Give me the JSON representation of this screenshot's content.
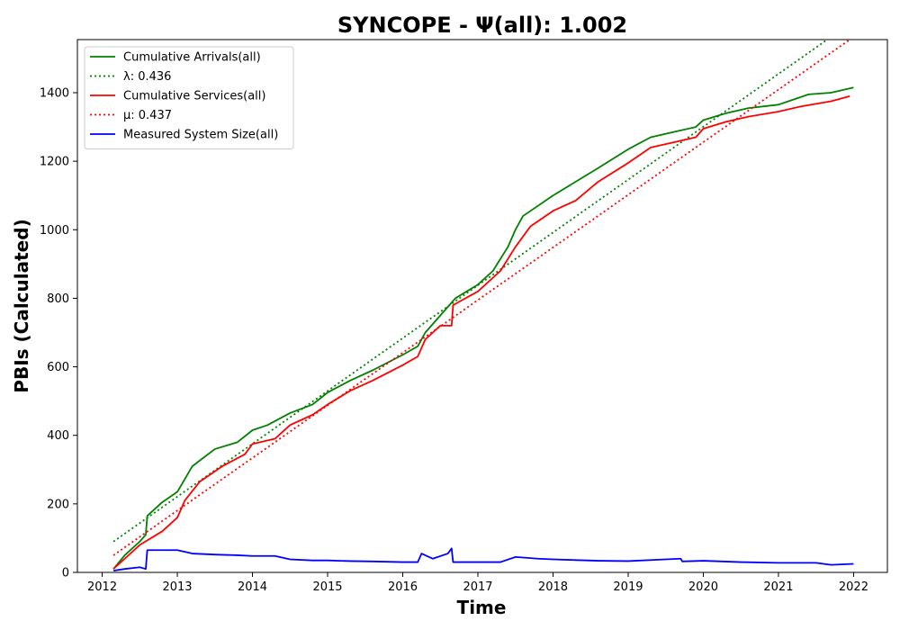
{
  "chart_data": {
    "type": "line",
    "title": "SYNCOPE -  Ψ(all): 1.002",
    "xlabel": "Time",
    "ylabel": "PBIs (Calculated)",
    "xlim": [
      2011.67,
      2022.45
    ],
    "ylim": [
      0,
      1555
    ],
    "x_ticks": [
      2012,
      2013,
      2014,
      2015,
      2016,
      2017,
      2018,
      2019,
      2020,
      2021,
      2022
    ],
    "y_ticks": [
      0,
      200,
      400,
      600,
      800,
      1000,
      1200,
      1400
    ],
    "grid": false,
    "legend_position": "top-left",
    "series": [
      {
        "name": "Cumulative Arrivals(all)",
        "style": "solid",
        "color": "#008000",
        "x": [
          2012.15,
          2012.3,
          2012.5,
          2012.58,
          2012.6,
          2012.8,
          2013.0,
          2013.2,
          2013.5,
          2013.8,
          2014.0,
          2014.2,
          2014.5,
          2014.8,
          2015.0,
          2015.3,
          2015.6,
          2016.0,
          2016.2,
          2016.3,
          2016.5,
          2016.7,
          2017.0,
          2017.2,
          2017.4,
          2017.5,
          2017.6,
          2018.0,
          2018.3,
          2018.6,
          2019.0,
          2019.3,
          2019.6,
          2019.9,
          2020.0,
          2020.3,
          2020.6,
          2021.0,
          2021.4,
          2021.7,
          2022.0
        ],
        "y": [
          10,
          50,
          90,
          110,
          165,
          205,
          235,
          310,
          360,
          380,
          415,
          430,
          465,
          490,
          525,
          560,
          590,
          635,
          660,
          700,
          750,
          800,
          840,
          880,
          950,
          1000,
          1040,
          1100,
          1140,
          1180,
          1235,
          1270,
          1285,
          1300,
          1320,
          1340,
          1355,
          1365,
          1395,
          1400,
          1415
        ]
      },
      {
        "name": "λ: 0.436",
        "style": "dotted",
        "color": "#008000",
        "x": [
          2012.15,
          2021.65
        ],
        "y": [
          90,
          1555
        ]
      },
      {
        "name": "Cumulative Services(all)",
        "style": "solid",
        "color": "#ff0000",
        "x": [
          2012.15,
          2012.3,
          2012.5,
          2012.8,
          2013.0,
          2013.1,
          2013.3,
          2013.6,
          2013.9,
          2014.0,
          2014.3,
          2014.5,
          2014.8,
          2015.0,
          2015.3,
          2015.6,
          2016.0,
          2016.2,
          2016.3,
          2016.5,
          2016.65,
          2016.67,
          2017.0,
          2017.3,
          2017.5,
          2017.7,
          2018.0,
          2018.3,
          2018.6,
          2019.0,
          2019.3,
          2019.6,
          2019.9,
          2020.0,
          2020.3,
          2020.6,
          2021.0,
          2021.3,
          2021.7,
          2021.95
        ],
        "y": [
          10,
          40,
          80,
          120,
          160,
          210,
          265,
          310,
          345,
          375,
          390,
          430,
          460,
          490,
          530,
          560,
          605,
          630,
          680,
          720,
          720,
          780,
          820,
          880,
          950,
          1010,
          1055,
          1085,
          1140,
          1195,
          1240,
          1255,
          1270,
          1295,
          1315,
          1330,
          1345,
          1360,
          1375,
          1390
        ]
      },
      {
        "name": "μ: 0.437",
        "style": "dotted",
        "color": "#ff0000",
        "x": [
          2012.15,
          2021.95
        ],
        "y": [
          50,
          1555
        ]
      },
      {
        "name": "Measured System Size(all)",
        "style": "solid",
        "color": "#0000ff",
        "x": [
          2012.15,
          2012.3,
          2012.5,
          2012.58,
          2012.6,
          2012.8,
          2013.0,
          2013.2,
          2013.5,
          2013.8,
          2014.0,
          2014.3,
          2014.5,
          2014.8,
          2015.0,
          2015.3,
          2015.6,
          2016.0,
          2016.2,
          2016.25,
          2016.4,
          2016.6,
          2016.65,
          2016.67,
          2017.0,
          2017.3,
          2017.5,
          2017.8,
          2018.0,
          2018.3,
          2018.6,
          2019.0,
          2019.5,
          2019.7,
          2019.72,
          2020.0,
          2020.5,
          2021.0,
          2021.5,
          2021.7,
          2022.0
        ],
        "y": [
          5,
          10,
          15,
          10,
          65,
          65,
          65,
          55,
          52,
          50,
          48,
          48,
          38,
          35,
          35,
          33,
          32,
          30,
          30,
          55,
          40,
          55,
          70,
          30,
          30,
          30,
          45,
          40,
          38,
          36,
          34,
          33,
          38,
          40,
          32,
          34,
          30,
          28,
          28,
          22,
          25
        ]
      }
    ]
  }
}
